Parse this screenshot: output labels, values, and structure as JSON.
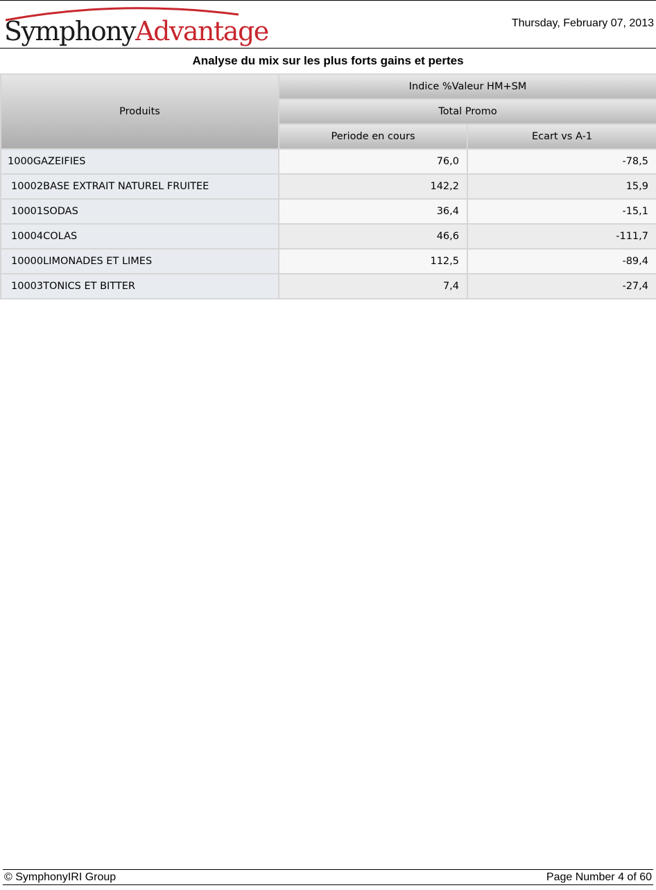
{
  "header": {
    "logo_part1": "Symphony",
    "logo_part2": "Advantage",
    "date": "Thursday, February 07, 2013",
    "brand_color": "#c8262e"
  },
  "report": {
    "title": "Analyse du mix sur les plus forts gains et pertes"
  },
  "table": {
    "row_header": "Produits",
    "measure_header": "Indice %Valeur HM+SM",
    "group_header": "Total Promo",
    "columns": [
      "Periode en cours",
      "Ecart vs A-1"
    ],
    "rows": [
      {
        "name": "1000GAZEIFIES",
        "periode": "76,0",
        "ecart": "-78,5"
      },
      {
        "name": "10002BASE EXTRAIT NATUREL FRUITEE",
        "periode": "142,2",
        "ecart": "15,9"
      },
      {
        "name": "10001SODAS",
        "periode": "36,4",
        "ecart": "-15,1"
      },
      {
        "name": "10004COLAS",
        "periode": "46,6",
        "ecart": "-111,7"
      },
      {
        "name": "10000LIMONADES ET LIMES",
        "periode": "112,5",
        "ecart": "-89,4"
      },
      {
        "name": "10003TONICS ET BITTER",
        "periode": "7,4",
        "ecart": "-27,4"
      }
    ]
  },
  "footer": {
    "copyright": "© SymphonyIRI Group",
    "page_label": "Page Number 4 of 60"
  }
}
